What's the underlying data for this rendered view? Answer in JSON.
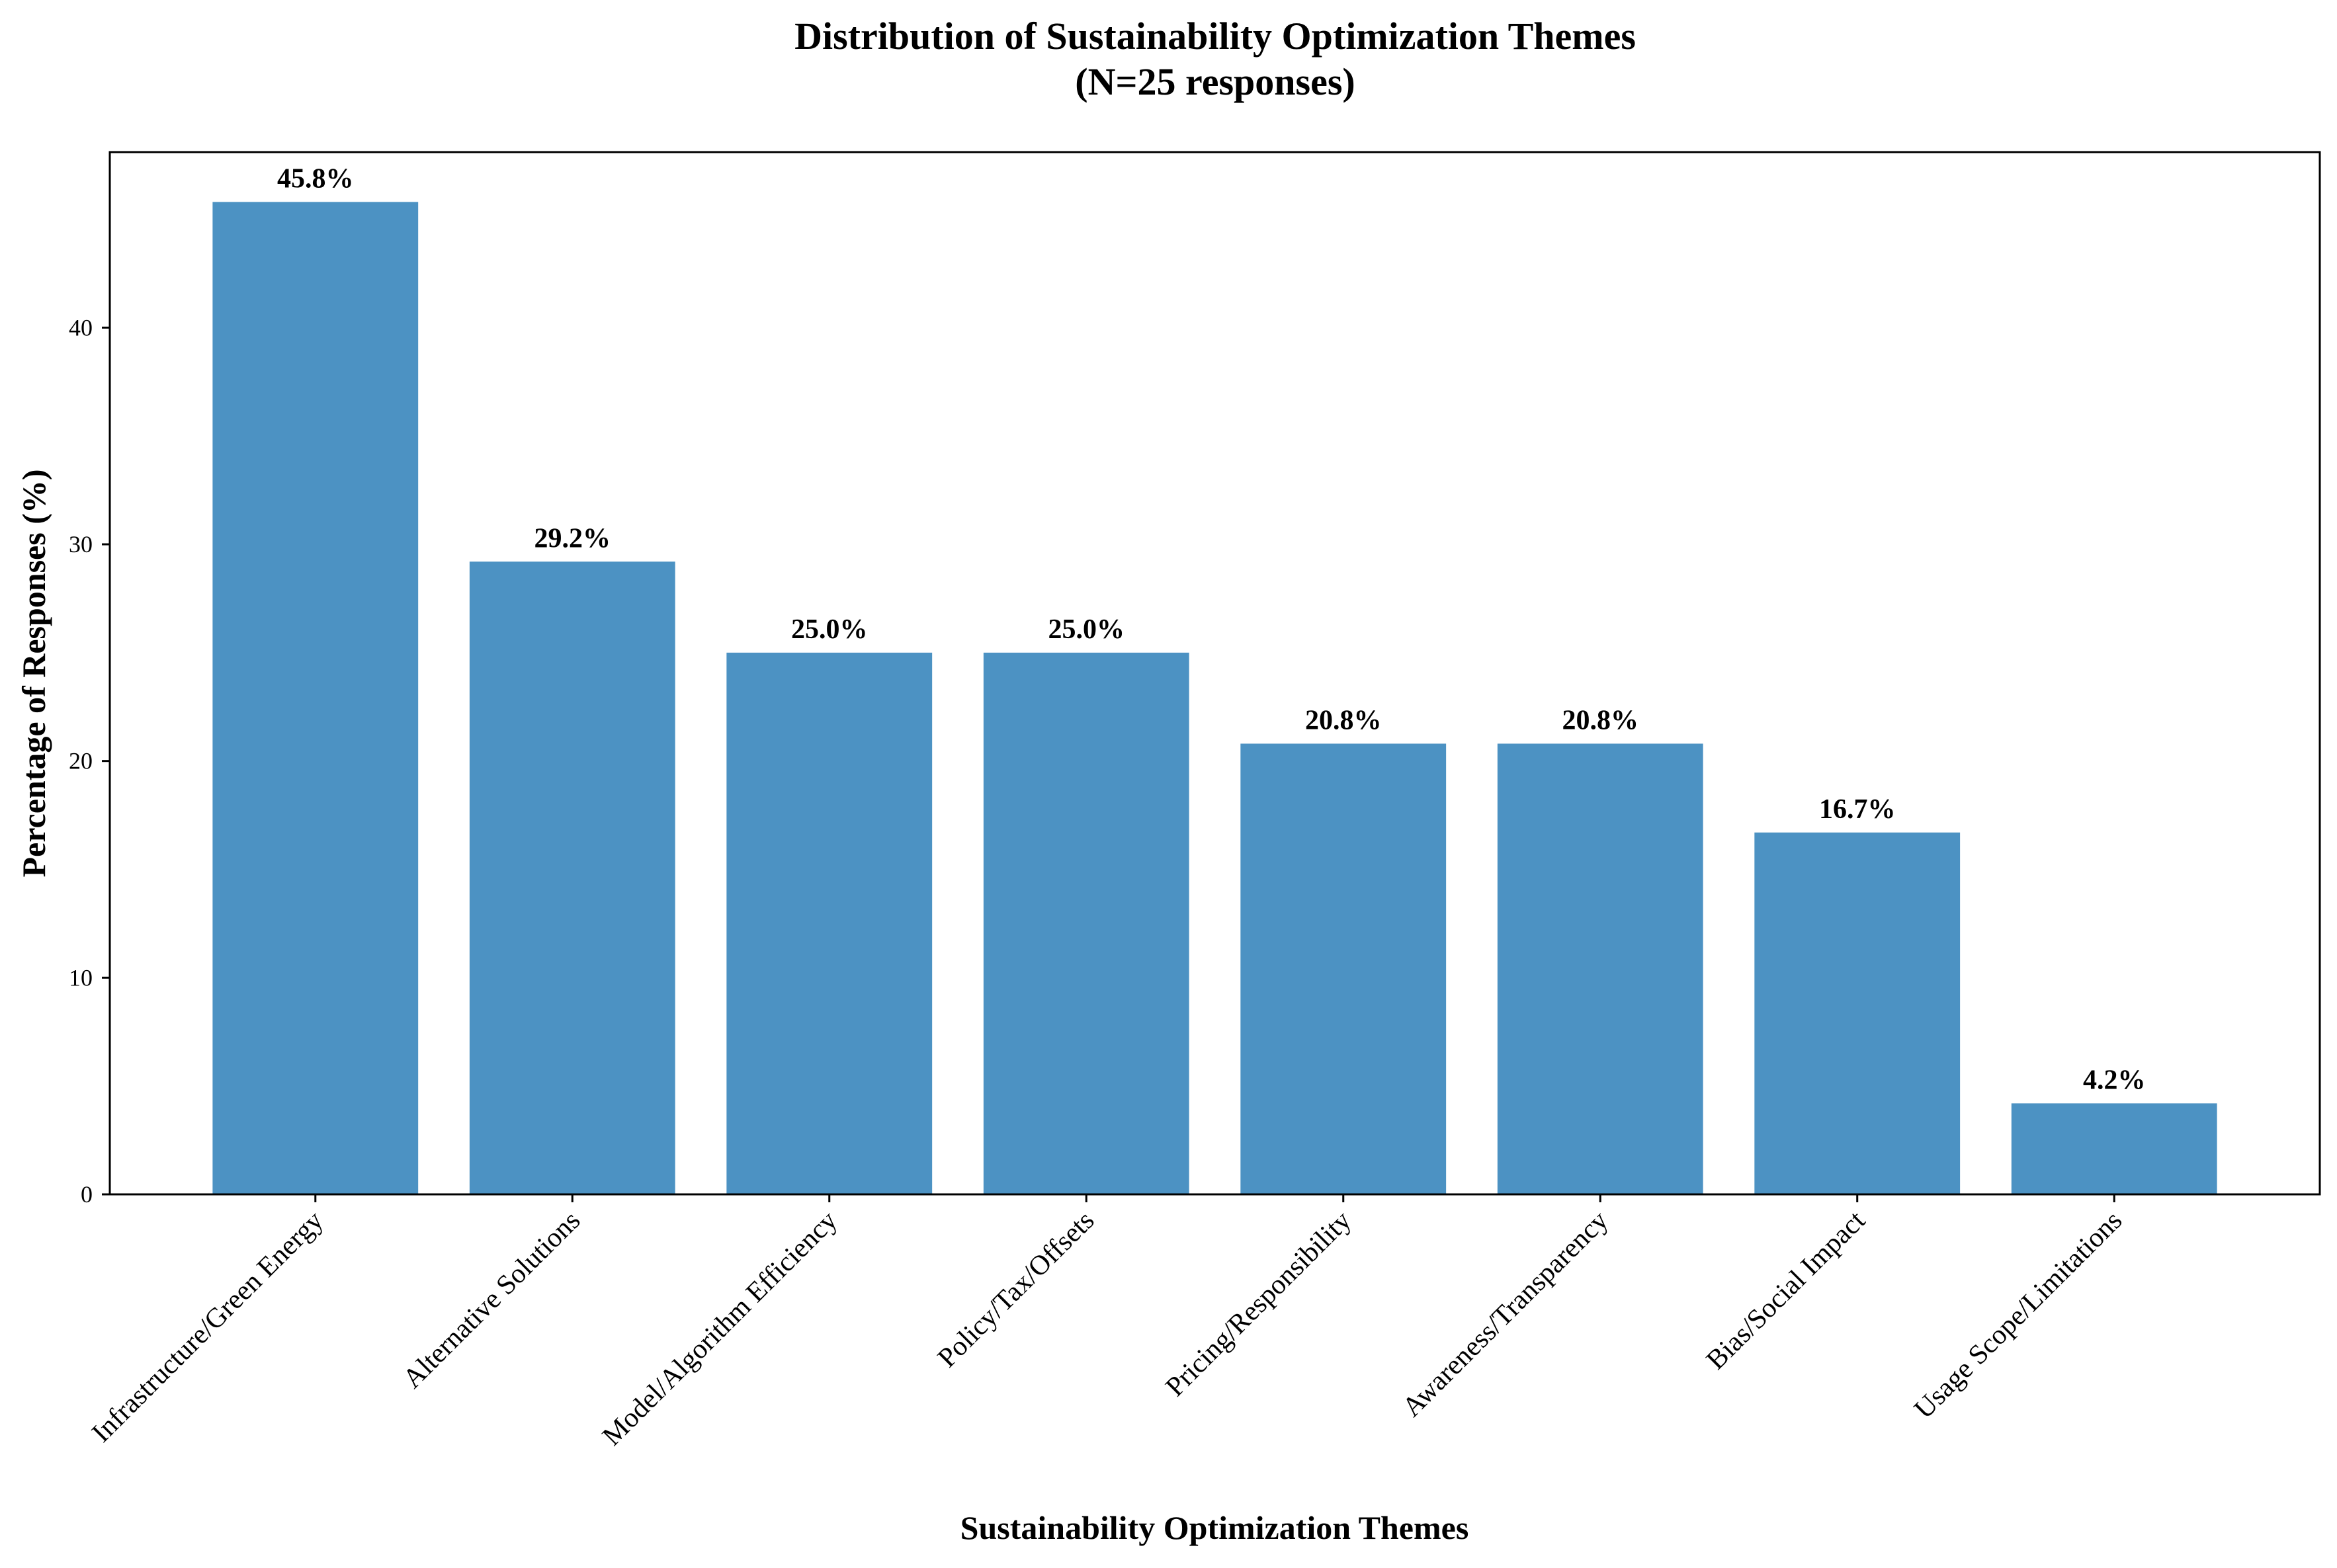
{
  "chart_data": {
    "type": "bar",
    "title": "Distribution of Sustainability Optimization Themes",
    "subtitle": "(N=25 responses)",
    "xlabel": "Sustainability Optimization Themes",
    "ylabel": "Percentage of Responses (%)",
    "ylim": [
      0,
      48.1
    ],
    "yticks": [
      0,
      10,
      20,
      30,
      40
    ],
    "grid": false,
    "legend": "none",
    "bar_color": "#4c92c3",
    "categories": [
      "Infrastructure/Green Energy",
      "Alternative Solutions",
      "Model/Algorithm Efficiency",
      "Policy/Tax/Offsets",
      "Pricing/Responsibility",
      "Awareness/Transparency",
      "Bias/Social Impact",
      "Usage Scope/Limitations"
    ],
    "values": [
      45.8,
      29.2,
      25.0,
      25.0,
      20.8,
      20.8,
      16.7,
      4.2
    ],
    "data_labels": [
      "45.8%",
      "29.2%",
      "25.0%",
      "25.0%",
      "20.8%",
      "20.8%",
      "16.7%",
      "4.2%"
    ]
  }
}
